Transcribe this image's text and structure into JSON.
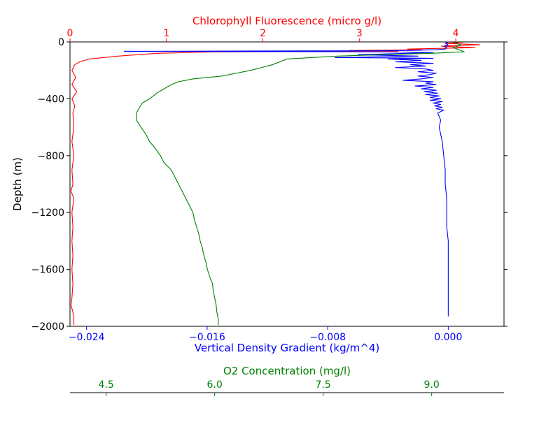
{
  "chart_data": {
    "type": "line",
    "ylabel": "Depth (m)",
    "ylim": [
      -2000,
      0
    ],
    "yticks": [
      0,
      -400,
      -800,
      -1200,
      -1600,
      -2000
    ],
    "ytick_labels": [
      "0",
      "−400",
      "−800",
      "−1200",
      "−1600",
      "−2000"
    ],
    "axes": {
      "chlorophyll": {
        "label": "Chlorophyll Fluorescence (micro g/l)",
        "position": "top",
        "color": "#ff0000",
        "xlim": [
          0,
          4.5
        ],
        "ticks": [
          0,
          1,
          2,
          3,
          4
        ],
        "tick_labels": [
          "0",
          "1",
          "2",
          "3",
          "4"
        ]
      },
      "density": {
        "label": "Vertical Density Gradient (kg/m^4)",
        "position": "bottom",
        "color": "#0000ff",
        "xlim": [
          -0.0251,
          0.0037
        ],
        "ticks": [
          -0.024,
          -0.016,
          -0.008,
          0.0
        ],
        "tick_labels": [
          "−0.024",
          "−0.016",
          "−0.008",
          "0.000"
        ]
      },
      "oxygen": {
        "label": "O2 Concentration (mg/l)",
        "position": "bottom-offset",
        "color": "#008000",
        "xlim": [
          4.0,
          10.0
        ],
        "ticks": [
          4.5,
          6.0,
          7.5,
          9.0
        ],
        "tick_labels": [
          "4.5",
          "6.0",
          "7.5",
          "9.0"
        ]
      }
    },
    "series": [
      {
        "axis": "chlorophyll",
        "color": "#ff0000",
        "points": [
          [
            4.1,
            0
          ],
          [
            3.9,
            -10
          ],
          [
            4.25,
            -20
          ],
          [
            3.85,
            -30
          ],
          [
            4.2,
            -40
          ],
          [
            3.5,
            -50
          ],
          [
            3.65,
            -55
          ],
          [
            2.9,
            -60
          ],
          [
            3.4,
            -65
          ],
          [
            1.5,
            -70
          ],
          [
            0.9,
            -80
          ],
          [
            0.5,
            -100
          ],
          [
            0.2,
            -120
          ],
          [
            0.1,
            -140
          ],
          [
            0.05,
            -160
          ],
          [
            0.02,
            -200
          ],
          [
            0.06,
            -250
          ],
          [
            0.02,
            -300
          ],
          [
            0.07,
            -350
          ],
          [
            0.02,
            -400
          ],
          [
            0.05,
            -450
          ],
          [
            0.03,
            -500
          ],
          [
            0.04,
            -600
          ],
          [
            0.02,
            -700
          ],
          [
            0.04,
            -800
          ],
          [
            0.02,
            -900
          ],
          [
            0.03,
            -1000
          ],
          [
            0.01,
            -1050
          ],
          [
            0.04,
            -1100
          ],
          [
            0.02,
            -1200
          ],
          [
            0.03,
            -1300
          ],
          [
            0.02,
            -1400
          ],
          [
            0.03,
            -1500
          ],
          [
            0.02,
            -1600
          ],
          [
            0.03,
            -1700
          ],
          [
            0.02,
            -1800
          ],
          [
            0.01,
            -1850
          ],
          [
            0.03,
            -1900
          ],
          [
            0.04,
            -1950
          ],
          [
            0.04,
            -1990
          ]
        ]
      },
      {
        "axis": "density",
        "color": "#0000ff",
        "points": [
          [
            0.0,
            0
          ],
          [
            -0.0002,
            -10
          ],
          [
            0.0,
            -20
          ],
          [
            -0.0003,
            -30
          ],
          [
            -0.0001,
            -40
          ],
          [
            -0.0002,
            -50
          ],
          [
            -0.0008,
            -55
          ],
          [
            -0.0025,
            -60
          ],
          [
            -0.0053,
            -62
          ],
          [
            -0.0215,
            -66
          ],
          [
            -0.0105,
            -68
          ],
          [
            -0.004,
            -70
          ],
          [
            -0.001,
            -75
          ],
          [
            -0.006,
            -90
          ],
          [
            -0.002,
            -100
          ],
          [
            -0.0075,
            -110
          ],
          [
            -0.001,
            -115
          ],
          [
            -0.004,
            -120
          ],
          [
            -0.0018,
            -130
          ],
          [
            -0.0035,
            -140
          ],
          [
            -0.001,
            -150
          ],
          [
            -0.0025,
            -160
          ],
          [
            -0.0015,
            -170
          ],
          [
            -0.0035,
            -180
          ],
          [
            -0.0015,
            -190
          ],
          [
            -0.001,
            -200
          ],
          [
            -0.002,
            -210
          ],
          [
            -0.0008,
            -220
          ],
          [
            -0.0012,
            -230
          ],
          [
            -0.002,
            -240
          ],
          [
            -0.001,
            -250
          ],
          [
            -0.0018,
            -260
          ],
          [
            -0.003,
            -270
          ],
          [
            -0.001,
            -280
          ],
          [
            -0.0015,
            -290
          ],
          [
            -0.0008,
            -300
          ],
          [
            -0.0022,
            -310
          ],
          [
            -0.001,
            -320
          ],
          [
            -0.0018,
            -330
          ],
          [
            -0.0008,
            -340
          ],
          [
            -0.0016,
            -350
          ],
          [
            -0.0007,
            -360
          ],
          [
            -0.0015,
            -370
          ],
          [
            -0.0006,
            -380
          ],
          [
            -0.0012,
            -390
          ],
          [
            -0.0005,
            -400
          ],
          [
            -0.0012,
            -410
          ],
          [
            -0.0004,
            -420
          ],
          [
            -0.001,
            -430
          ],
          [
            -0.0005,
            -440
          ],
          [
            -0.0009,
            -450
          ],
          [
            -0.0004,
            -460
          ],
          [
            -0.0008,
            -470
          ],
          [
            -0.0003,
            -480
          ],
          [
            -0.0007,
            -500
          ],
          [
            -0.0005,
            -550
          ],
          [
            -0.0006,
            -600
          ],
          [
            -0.0004,
            -700
          ],
          [
            -0.0003,
            -800
          ],
          [
            -0.0002,
            -900
          ],
          [
            -0.0002,
            -1000
          ],
          [
            -0.0001,
            -1100
          ],
          [
            -0.0001,
            -1200
          ],
          [
            -0.0001,
            -1300
          ],
          [
            0.0,
            -1400
          ],
          [
            0.0,
            -1600
          ],
          [
            0.0,
            -1800
          ],
          [
            0.0,
            -1930
          ]
        ]
      },
      {
        "axis": "oxygen",
        "color": "#008000",
        "points": [
          [
            9.3,
            0
          ],
          [
            9.4,
            -20
          ],
          [
            9.3,
            -40
          ],
          [
            9.45,
            -70
          ],
          [
            9.0,
            -80
          ],
          [
            8.3,
            -90
          ],
          [
            7.7,
            -100
          ],
          [
            7.0,
            -120
          ],
          [
            6.9,
            -140
          ],
          [
            6.8,
            -160
          ],
          [
            6.65,
            -180
          ],
          [
            6.5,
            -200
          ],
          [
            6.3,
            -220
          ],
          [
            6.1,
            -240
          ],
          [
            5.7,
            -260
          ],
          [
            5.5,
            -280
          ],
          [
            5.4,
            -300
          ],
          [
            5.3,
            -330
          ],
          [
            5.2,
            -360
          ],
          [
            5.1,
            -400
          ],
          [
            5.0,
            -430
          ],
          [
            4.95,
            -470
          ],
          [
            4.92,
            -500
          ],
          [
            4.92,
            -550
          ],
          [
            4.98,
            -600
          ],
          [
            5.05,
            -650
          ],
          [
            5.1,
            -700
          ],
          [
            5.18,
            -750
          ],
          [
            5.25,
            -800
          ],
          [
            5.3,
            -850
          ],
          [
            5.4,
            -900
          ],
          [
            5.45,
            -950
          ],
          [
            5.5,
            -1000
          ],
          [
            5.55,
            -1050
          ],
          [
            5.6,
            -1100
          ],
          [
            5.65,
            -1150
          ],
          [
            5.7,
            -1200
          ],
          [
            5.72,
            -1250
          ],
          [
            5.75,
            -1300
          ],
          [
            5.78,
            -1350
          ],
          [
            5.8,
            -1400
          ],
          [
            5.83,
            -1450
          ],
          [
            5.85,
            -1500
          ],
          [
            5.88,
            -1550
          ],
          [
            5.9,
            -1600
          ],
          [
            5.93,
            -1650
          ],
          [
            5.97,
            -1700
          ],
          [
            5.98,
            -1750
          ],
          [
            6.0,
            -1800
          ],
          [
            6.02,
            -1850
          ],
          [
            6.03,
            -1900
          ],
          [
            6.05,
            -1950
          ],
          [
            6.05,
            -1990
          ]
        ]
      }
    ],
    "grid": false,
    "legend": "none"
  }
}
